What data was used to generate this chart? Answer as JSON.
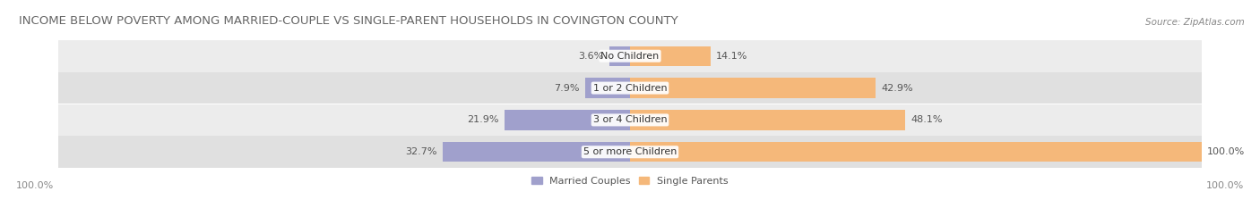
{
  "title": "INCOME BELOW POVERTY AMONG MARRIED-COUPLE VS SINGLE-PARENT HOUSEHOLDS IN COVINGTON COUNTY",
  "source": "Source: ZipAtlas.com",
  "categories": [
    "No Children",
    "1 or 2 Children",
    "3 or 4 Children",
    "5 or more Children"
  ],
  "married_values": [
    3.6,
    7.9,
    21.9,
    32.7
  ],
  "single_values": [
    14.1,
    42.9,
    48.1,
    100.0
  ],
  "married_color": "#a0a0cc",
  "single_color": "#f5b87a",
  "row_bg_colors": [
    "#ececec",
    "#e0e0e0"
  ],
  "max_value": 100.0,
  "title_fontsize": 9.5,
  "label_fontsize": 8.0,
  "tick_fontsize": 8.0,
  "source_fontsize": 7.5,
  "background_color": "#ffffff",
  "left_axis_label": "100.0%",
  "right_axis_label": "100.0%"
}
